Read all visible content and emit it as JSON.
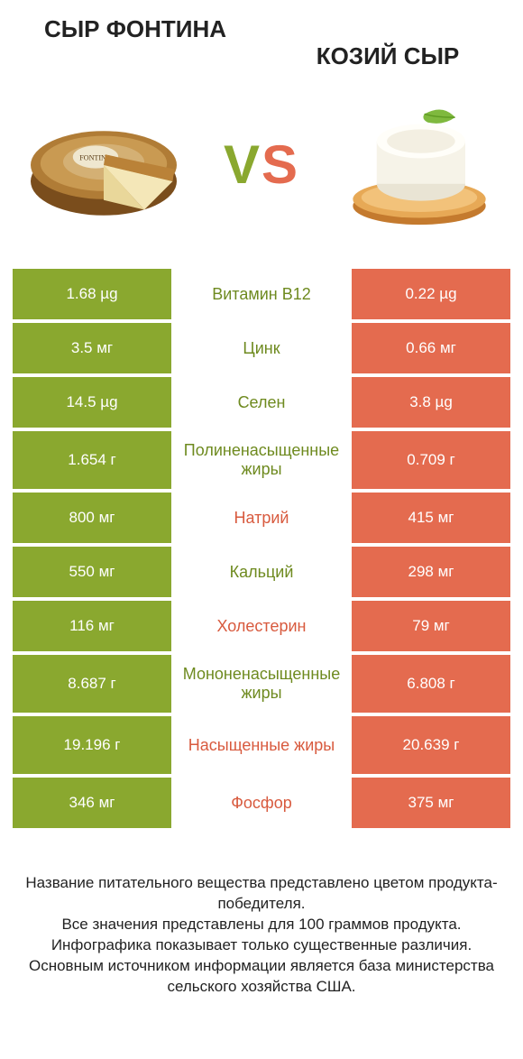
{
  "colors": {
    "green": "#8aa82f",
    "greenText": "#6e8a1f",
    "orange": "#e46b4f",
    "orangeText": "#d85a3e",
    "white": "#ffffff"
  },
  "products": {
    "left": {
      "title": "СЫР ФОНТИНА"
    },
    "right": {
      "title": "КОЗИЙ СЫР"
    }
  },
  "vs": {
    "v": "V",
    "s": "S"
  },
  "rows": [
    {
      "label": "Витамин B12",
      "left": "1.68 µg",
      "right": "0.22 µg",
      "winner": "left",
      "tall": false
    },
    {
      "label": "Цинк",
      "left": "3.5 мг",
      "right": "0.66 мг",
      "winner": "left",
      "tall": false
    },
    {
      "label": "Селен",
      "left": "14.5 µg",
      "right": "3.8 µg",
      "winner": "left",
      "tall": false
    },
    {
      "label": "Полиненасыщенные жиры",
      "left": "1.654 г",
      "right": "0.709 г",
      "winner": "left",
      "tall": true
    },
    {
      "label": "Натрий",
      "left": "800 мг",
      "right": "415 мг",
      "winner": "right",
      "tall": false
    },
    {
      "label": "Кальций",
      "left": "550 мг",
      "right": "298 мг",
      "winner": "left",
      "tall": false
    },
    {
      "label": "Холестерин",
      "left": "116 мг",
      "right": "79 мг",
      "winner": "right",
      "tall": false
    },
    {
      "label": "Мононенасыщенные жиры",
      "left": "8.687 г",
      "right": "6.808 г",
      "winner": "left",
      "tall": true
    },
    {
      "label": "Насыщенные жиры",
      "left": "19.196 г",
      "right": "20.639 г",
      "winner": "right",
      "tall": true
    },
    {
      "label": "Фосфор",
      "left": "346 мг",
      "right": "375 мг",
      "winner": "right",
      "tall": false
    }
  ],
  "footnote": "Название питательного вещества представлено цветом продукта-победителя.\nВсе значения представлены для 100 граммов продукта.\nИнфографика показывает только существенные различия.\nОсновным источником информации является база министерства сельского хозяйства США."
}
